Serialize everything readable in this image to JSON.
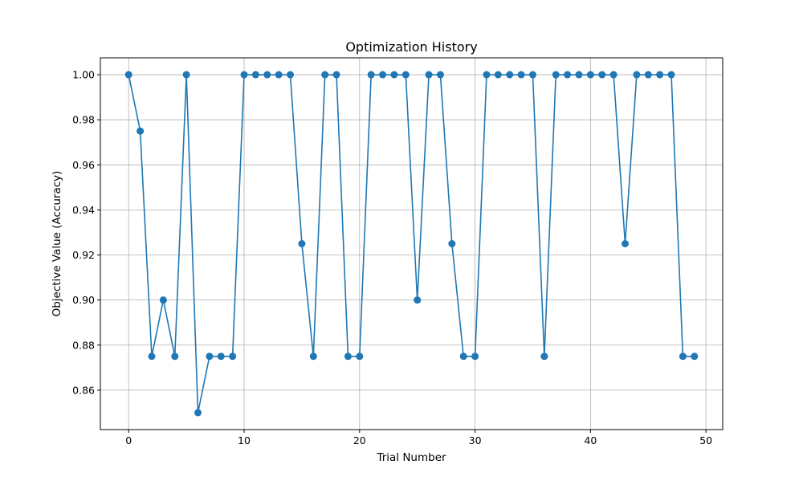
{
  "chart_data": {
    "type": "line",
    "title": "Optimization History",
    "xlabel": "Trial Number",
    "ylabel": "Objective Value (Accuracy)",
    "xlim": [
      -2.45,
      51.45
    ],
    "ylim": [
      0.8425,
      1.0075
    ],
    "grid": true,
    "x_ticks": [
      0,
      10,
      20,
      30,
      40,
      50
    ],
    "x_tick_labels": [
      "0",
      "10",
      "20",
      "30",
      "40",
      "50"
    ],
    "y_ticks": [
      0.86,
      0.88,
      0.9,
      0.92,
      0.94,
      0.96,
      0.98,
      1.0
    ],
    "y_tick_labels": [
      "0.86",
      "0.88",
      "0.90",
      "0.92",
      "0.94",
      "0.96",
      "0.98",
      "1.00"
    ],
    "line_color": "#1f77b4",
    "series": [
      {
        "x": [
          0,
          1,
          2,
          3,
          4,
          5,
          6,
          7,
          8,
          9,
          10,
          11,
          12,
          13,
          14,
          15,
          16,
          17,
          18,
          19,
          20,
          21,
          22,
          23,
          24,
          25,
          26,
          27,
          28,
          29,
          30,
          31,
          32,
          33,
          34,
          35,
          36,
          37,
          38,
          39,
          40,
          41,
          42,
          43,
          44,
          45,
          46,
          47,
          48,
          49
        ],
        "values": [
          1.0,
          0.975,
          0.875,
          0.9,
          0.875,
          1.0,
          0.85,
          0.875,
          0.875,
          0.875,
          1.0,
          1.0,
          1.0,
          1.0,
          1.0,
          0.925,
          0.875,
          1.0,
          1.0,
          0.875,
          0.875,
          1.0,
          1.0,
          1.0,
          1.0,
          0.9,
          1.0,
          1.0,
          0.925,
          0.875,
          0.875,
          1.0,
          1.0,
          1.0,
          1.0,
          1.0,
          0.875,
          1.0,
          1.0,
          1.0,
          1.0,
          1.0,
          1.0,
          0.925,
          1.0,
          1.0,
          1.0,
          1.0,
          0.875,
          0.875
        ]
      }
    ]
  }
}
